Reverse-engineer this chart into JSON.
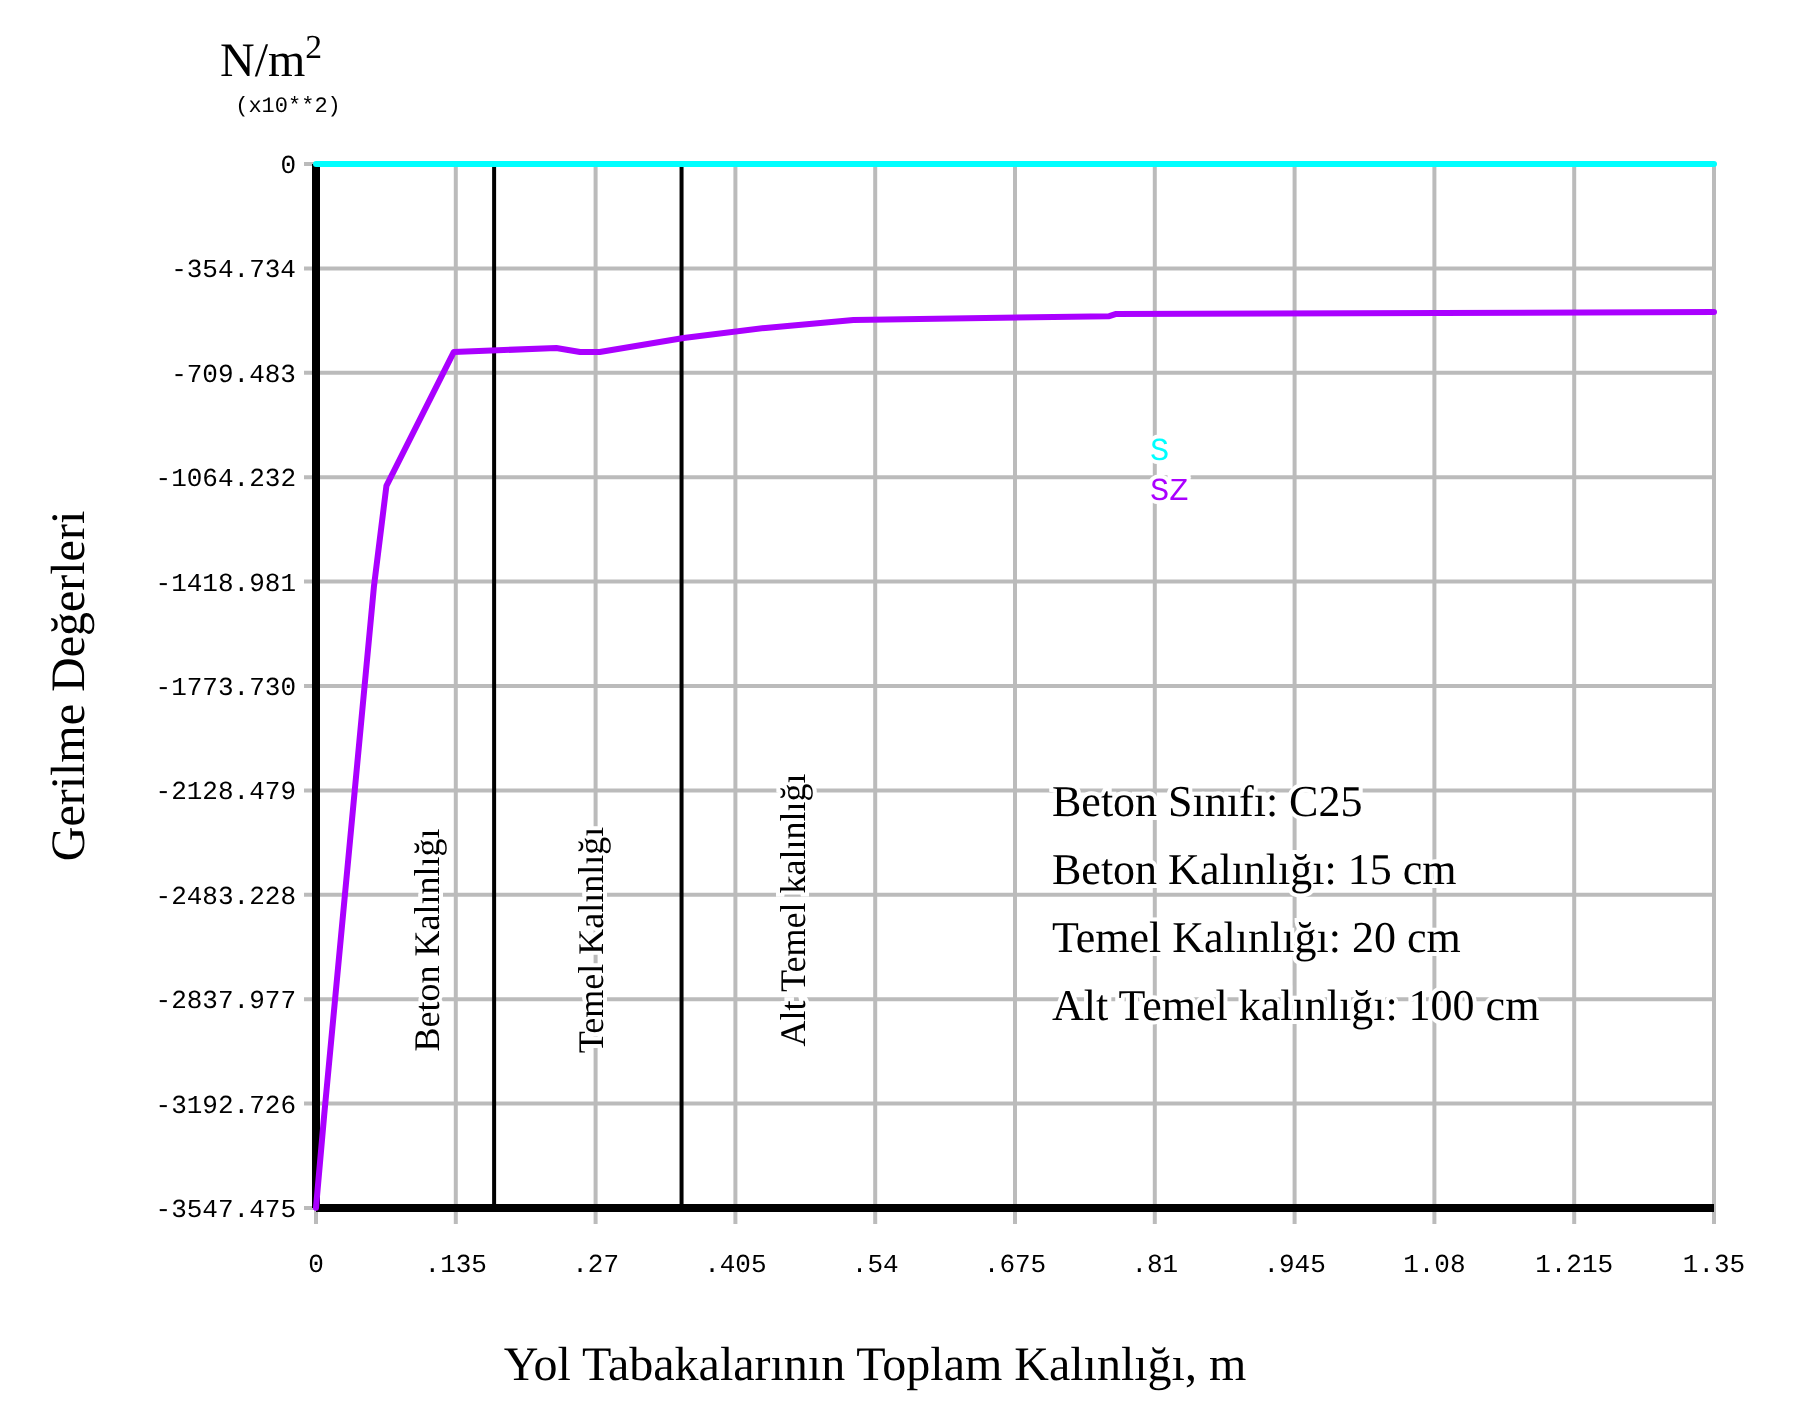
{
  "chart_data": {
    "type": "line",
    "xlabel": "Yol Tabakalarının Toplam Kalınlığı, m",
    "ylabel": "Gerilme Değerleri",
    "annotations": [
      "N/m$^{2}$",
      "(x10**2)",
      "Beton Sınıfı: C25",
      "Beton Kalınlığı: 15 cm",
      "Temel Kalınlığı: 20 cm",
      "Alt Temel kalınlığı: 100 cm",
      "Beton Kalınlığı",
      "Temel Kalınlığı",
      "Alt Temel kalınlığı"
    ],
    "series": [
      {
        "name": "S",
        "color": "#00ffff",
        "x": [
          0,
          1.35
        ],
        "values": [
          0,
          0
        ]
      },
      {
        "name": "SZ",
        "color": "#aa00ff",
        "x": [
          0,
          0.008,
          0.056,
          0.068,
          0.133,
          0.232,
          0.255,
          0.274,
          0.355,
          0.434,
          0.519,
          0.766,
          0.772,
          1.35
        ],
        "values": [
          -3547,
          -3228,
          -1434,
          -1094,
          -639,
          -625,
          -639,
          -639,
          -591,
          -557,
          -530,
          -517,
          -510,
          -503
        ]
      }
    ],
    "ref_lines": [
      {
        "axis": "x",
        "value": 0.172,
        "color": "#000000"
      },
      {
        "axis": "x",
        "value": 0.353,
        "color": "#000000"
      }
    ],
    "xlim": [
      0,
      1.35
    ],
    "ylim": [
      -3547.475,
      0
    ],
    "xticks": [
      0,
      {
        "value": 0.135,
        "label": ".135"
      },
      {
        "value": 0.27,
        "label": ".27"
      },
      {
        "value": 0.405,
        "label": ".405"
      },
      {
        "value": 0.54,
        "label": ".54"
      },
      {
        "value": 0.675,
        "label": ".675"
      },
      {
        "value": 0.81,
        "label": ".81"
      },
      {
        "value": 0.945,
        "label": ".945"
      },
      1.08,
      {
        "value": 1.215,
        "label": "1.215"
      },
      1.35
    ],
    "yticks": [
      0,
      -354.734,
      -709.483,
      -1064.232,
      -1418.981,
      {
        "value": -1773.73,
        "label": "-1773.730"
      },
      -2128.479,
      -2483.228,
      -2837.977,
      -3192.726,
      -3547.475
    ],
    "grid": true,
    "legend": "center",
    "marker": "none",
    "line_style": "solid"
  }
}
